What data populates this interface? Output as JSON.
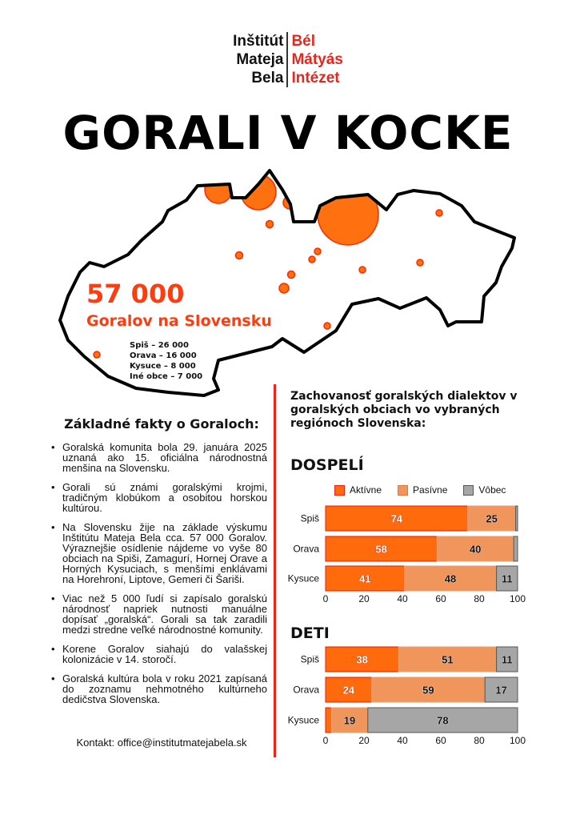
{
  "logo": {
    "left": [
      "Inštitút",
      "Mateja",
      "Bela"
    ],
    "right": [
      "Bél",
      "Mátyás",
      "Intézet"
    ]
  },
  "title": "GORALI V KOCKE",
  "map": {
    "total": "57 000",
    "subtitle": "Goralov na Slovensku",
    "regions": [
      "Spiš – 26 000",
      "Orava – 16 000",
      "Kysuce – 8 000",
      "Iné obce – 7 000"
    ],
    "outline_color": "#000000",
    "marker_color": "#ff7010"
  },
  "facts": {
    "title": "Základné fakty o Goraloch:",
    "items": [
      "Goralská komunita bola 29. januára 2025 uznaná ako 15. oficiálna národnostná menšina na Slovensku.",
      "Gorali sú známi goralskými krojmi, tradičným klobúkom a osobitou horskou kultúrou.",
      "Na Slovensku žije na základe výskumu Inštitútu Mateja Bela cca. 57 000 Goralov. Výraznejšie osídlenie nájdeme vo vyše 80 obciach na Spiši, Zamagurí, Hornej Orave a Horných Kysuciach, s menšími enklávami na Horehroní, Liptove, Gemeri či Šariši.",
      "Viac než 5 000 ľudí si zapísalo goralskú národnosť napriek nutnosti manuálne dopísať „goralská“. Gorali sa tak zaradili medzi stredne veľké národnostné komunity.",
      "Korene Goralov siahajú do valašskej kolonizácie v 14. storočí.",
      "Goralská kultúra bola v roku 2021 zapísaná do zoznamu nehmotného kultúrneho dedičstva Slovenska."
    ],
    "contact": "Kontakt: office@institutmatejabela.sk"
  },
  "accent": "#e8261c",
  "chart_data": [
    {
      "type": "bar",
      "stacked": true,
      "orientation": "horizontal",
      "title": "Zachovanosť goralských dialektov v goralských obciach vo vybraných regiónoch Slovenska:",
      "subtitle": "DOSPELÍ",
      "categories": [
        "Spiš",
        "Orava",
        "Kysuce"
      ],
      "series": [
        {
          "name": "Aktívne",
          "color": "#ff6a0d",
          "values": [
            74,
            58,
            41
          ]
        },
        {
          "name": "Pasívne",
          "color": "#f0955c",
          "values": [
            25,
            40,
            48
          ]
        },
        {
          "name": "Vôbec",
          "color": "#a6a6a6",
          "values": [
            1,
            2,
            11
          ]
        }
      ],
      "xlim": [
        0,
        100
      ],
      "xticks": [
        0,
        20,
        40,
        60,
        80,
        100
      ],
      "legend": "top"
    },
    {
      "type": "bar",
      "stacked": true,
      "orientation": "horizontal",
      "subtitle": "DETI",
      "categories": [
        "Spiš",
        "Orava",
        "Kysuce"
      ],
      "series": [
        {
          "name": "Aktívne",
          "color": "#ff6a0d",
          "values": [
            38,
            24,
            3
          ]
        },
        {
          "name": "Pasívne",
          "color": "#f0955c",
          "values": [
            51,
            59,
            19
          ]
        },
        {
          "name": "Vôbec",
          "color": "#a6a6a6",
          "values": [
            11,
            17,
            78
          ]
        }
      ],
      "xlim": [
        0,
        100
      ],
      "xticks": [
        0,
        20,
        40,
        60,
        80,
        100
      ]
    }
  ]
}
